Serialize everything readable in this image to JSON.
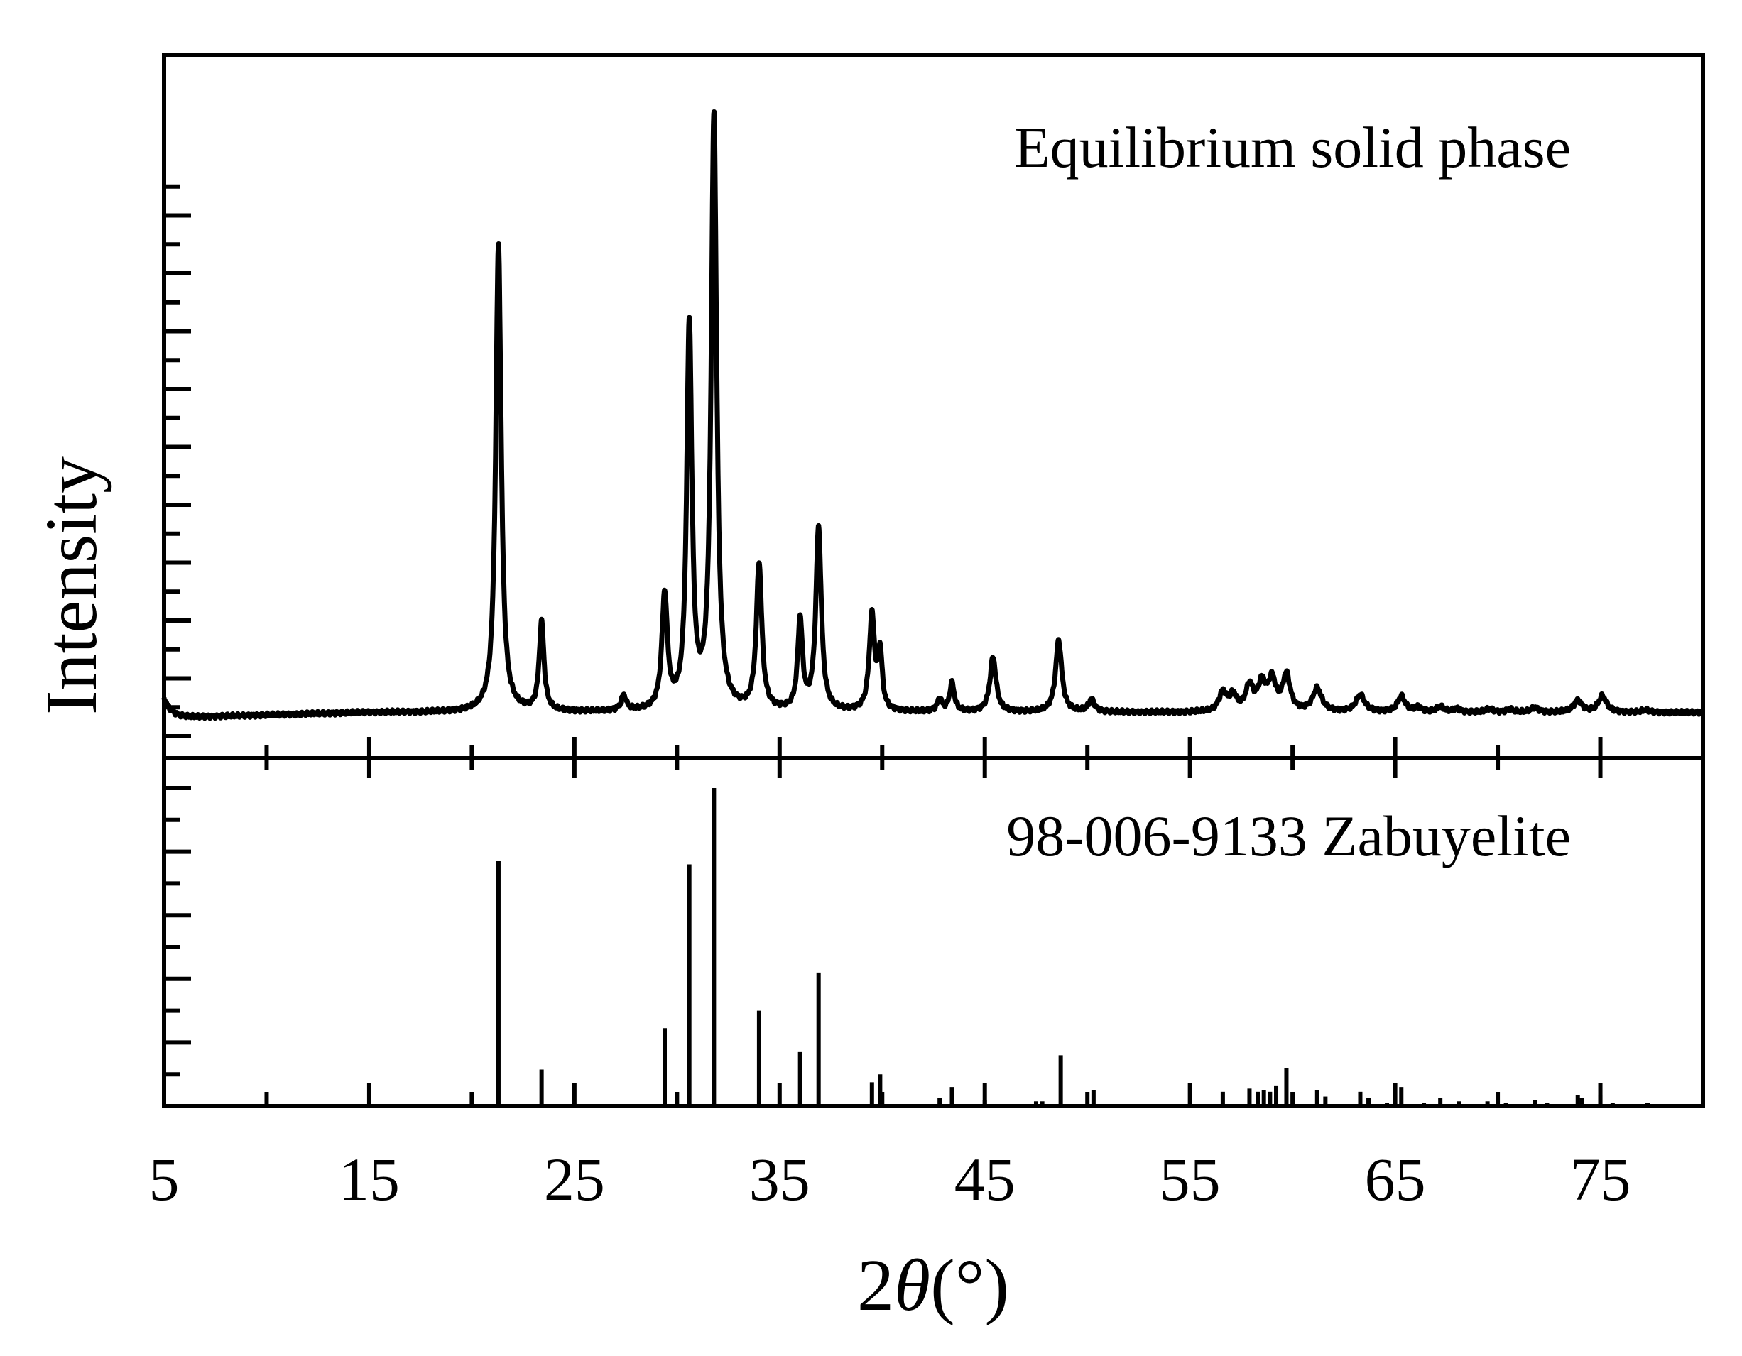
{
  "chart_data": [
    {
      "type": "line",
      "panel": "top",
      "title": "Equilibrium solid phase",
      "xlabel": "2θ(°)",
      "ylabel": "Intensity",
      "xlim": [
        5,
        80
      ],
      "ylim": [
        0,
        100
      ],
      "y_tick_labels": false,
      "peaks": [
        {
          "x": 21.3,
          "y": 80.8,
          "w": 0.16
        },
        {
          "x": 23.4,
          "y": 15.3,
          "w": 0.14
        },
        {
          "x": 27.4,
          "y": 2.6,
          "w": 0.15
        },
        {
          "x": 29.4,
          "y": 19.7,
          "w": 0.16
        },
        {
          "x": 30.6,
          "y": 66.4,
          "w": 0.15
        },
        {
          "x": 31.8,
          "y": 102.7,
          "w": 0.16
        },
        {
          "x": 34.0,
          "y": 25.2,
          "w": 0.16
        },
        {
          "x": 36.0,
          "y": 15.5,
          "w": 0.14
        },
        {
          "x": 36.9,
          "y": 31.5,
          "w": 0.16
        },
        {
          "x": 39.5,
          "y": 16.4,
          "w": 0.16
        },
        {
          "x": 39.9,
          "y": 9.6,
          "w": 0.12
        },
        {
          "x": 42.8,
          "y": 2.1,
          "w": 0.14
        },
        {
          "x": 43.4,
          "y": 4.9,
          "w": 0.14
        },
        {
          "x": 45.4,
          "y": 9.4,
          "w": 0.18
        },
        {
          "x": 48.6,
          "y": 12.4,
          "w": 0.18
        },
        {
          "x": 50.2,
          "y": 2.1,
          "w": 0.18
        },
        {
          "x": 56.6,
          "y": 3.3,
          "w": 0.22
        },
        {
          "x": 57.1,
          "y": 2.7,
          "w": 0.2
        },
        {
          "x": 57.9,
          "y": 4.3,
          "w": 0.22
        },
        {
          "x": 58.5,
          "y": 4.6,
          "w": 0.22
        },
        {
          "x": 59.0,
          "y": 5.2,
          "w": 0.22
        },
        {
          "x": 59.7,
          "y": 6.2,
          "w": 0.22
        },
        {
          "x": 61.2,
          "y": 4.0,
          "w": 0.26
        },
        {
          "x": 63.3,
          "y": 2.9,
          "w": 0.26
        },
        {
          "x": 65.3,
          "y": 2.7,
          "w": 0.22
        },
        {
          "x": 66.1,
          "y": 0.8,
          "w": 0.2
        },
        {
          "x": 67.2,
          "y": 0.9,
          "w": 0.22
        },
        {
          "x": 68.0,
          "y": 0.6,
          "w": 0.2
        },
        {
          "x": 69.6,
          "y": 0.6,
          "w": 0.2
        },
        {
          "x": 70.6,
          "y": 0.5,
          "w": 0.2
        },
        {
          "x": 71.8,
          "y": 0.8,
          "w": 0.22
        },
        {
          "x": 73.9,
          "y": 2.0,
          "w": 0.24
        },
        {
          "x": 75.1,
          "y": 2.8,
          "w": 0.24
        },
        {
          "x": 77.2,
          "y": 0.4,
          "w": 0.2
        }
      ]
    },
    {
      "type": "bar",
      "panel": "bottom",
      "title": "98-006-9133 Zabuyelite",
      "xlim": [
        5,
        80
      ],
      "ylim": [
        0,
        100
      ],
      "y_tick_labels": false,
      "x": [
        21.3,
        23.4,
        29.4,
        30.6,
        31.8,
        34.0,
        36.0,
        36.9,
        39.5,
        39.9,
        42.8,
        43.4,
        45.0,
        47.5,
        47.8,
        48.7,
        50.3,
        56.6,
        57.9,
        58.3,
        58.6,
        58.9,
        59.2,
        59.7,
        61.2,
        61.6,
        63.3,
        63.7,
        64.6,
        65.3,
        66.4,
        67.2,
        68.1,
        69.5,
        70.4,
        71.8,
        72.4,
        73.9,
        74.1,
        75.0,
        75.6,
        77.3
      ],
      "values": [
        77.0,
        11.5,
        24.5,
        76.0,
        100.0,
        30.0,
        17.0,
        42.0,
        7.5,
        10.0,
        2.5,
        6.0,
        2.0,
        1.5,
        1.5,
        16.0,
        5.0,
        4.5,
        5.5,
        4.5,
        5.0,
        4.5,
        6.5,
        12.0,
        5.0,
        3.0,
        4.5,
        2.5,
        1.0,
        6.0,
        1.0,
        2.5,
        1.5,
        1.5,
        1.0,
        2.0,
        1.0,
        3.5,
        2.5,
        3.5,
        1.0,
        1.0
      ]
    }
  ],
  "x_ticks": [
    "5",
    "15",
    "25",
    "35",
    "45",
    "55",
    "65",
    "75"
  ]
}
